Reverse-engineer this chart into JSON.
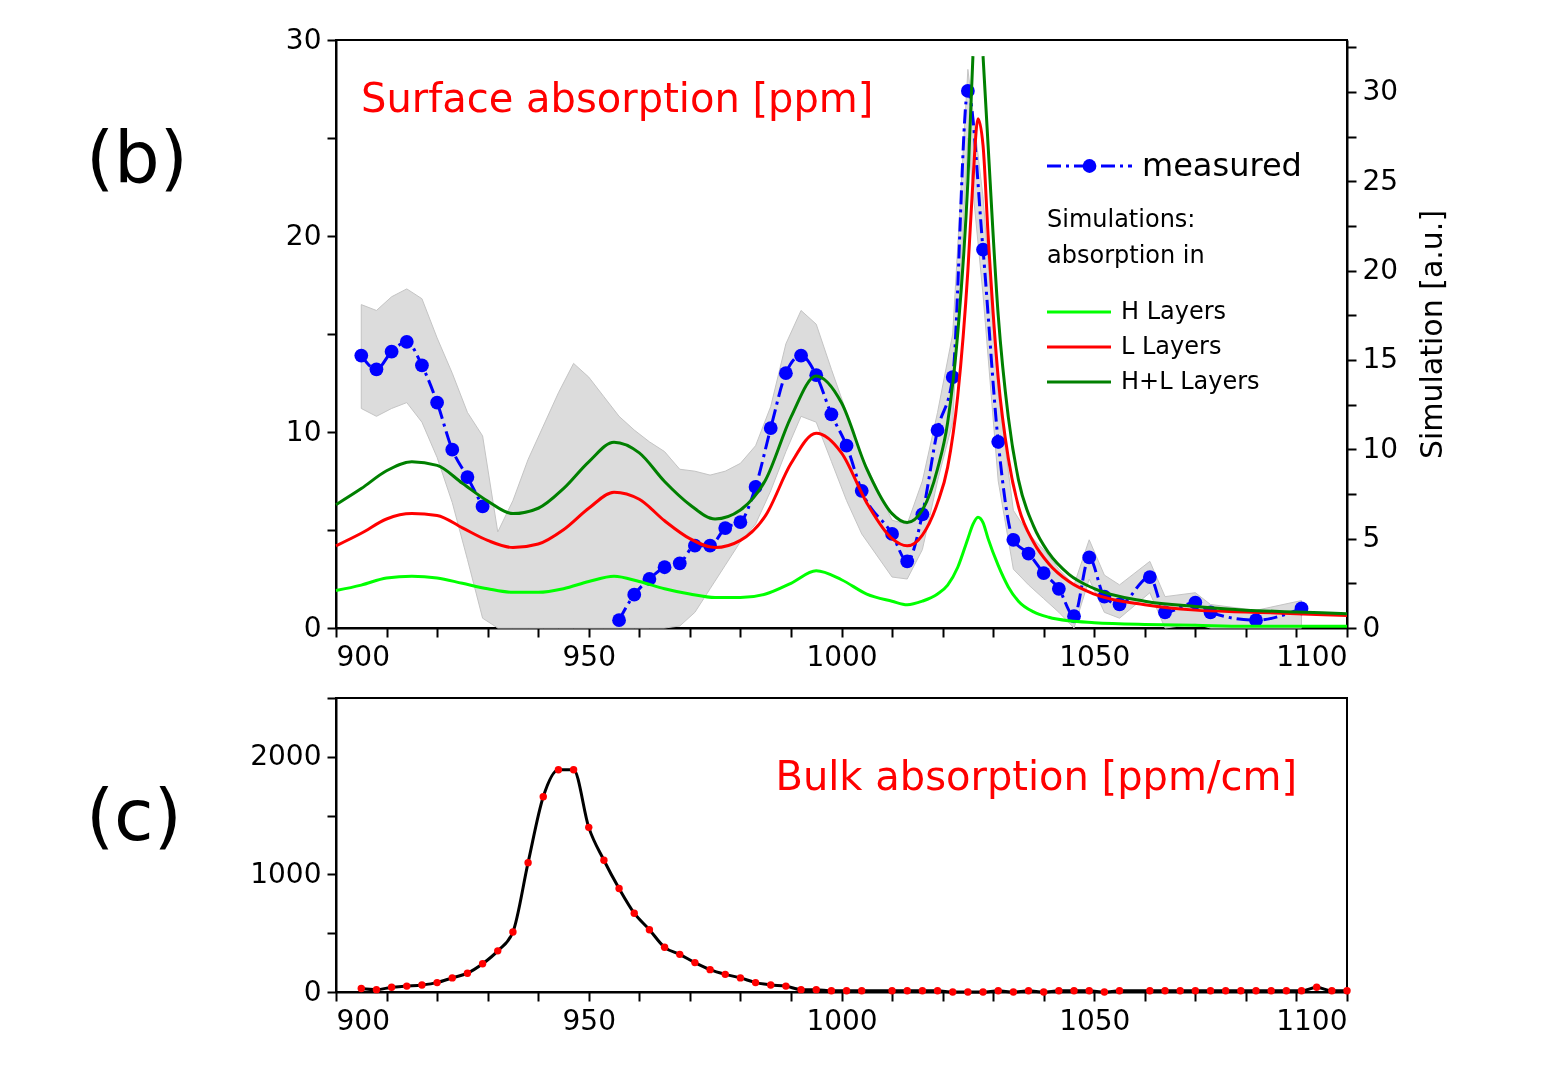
{
  "chart_data": [
    {
      "type": "line",
      "title": "Surface absorption [ppm]",
      "y2label": "Simulation [a.u.]",
      "annotations": [
        "(b)"
      ],
      "legend": "top right",
      "legend_title": "Simulations: absorption in",
      "grid": false,
      "xlim": [
        900,
        1100
      ],
      "xticks": [
        900,
        {
          "value": 910,
          "label": null
        },
        {
          "value": 920,
          "label": null
        },
        {
          "value": 930,
          "label": null
        },
        {
          "value": 940,
          "label": null
        },
        950,
        {
          "value": 960,
          "label": null
        },
        {
          "value": 970,
          "label": null
        },
        {
          "value": 980,
          "label": null
        },
        {
          "value": 990,
          "label": null
        },
        1000,
        {
          "value": 1010,
          "label": null
        },
        {
          "value": 1020,
          "label": null
        },
        {
          "value": 1030,
          "label": null
        },
        {
          "value": 1040,
          "label": null
        },
        1050,
        {
          "value": 1060,
          "label": null
        },
        {
          "value": 1070,
          "label": null
        },
        {
          "value": 1080,
          "label": null
        },
        {
          "value": 1090,
          "label": null
        },
        1100
      ],
      "ylim": [
        0,
        30
      ],
      "yticks": [
        0,
        {
          "value": 5,
          "label": null
        },
        10,
        {
          "value": 15,
          "label": null
        },
        20,
        {
          "value": 25,
          "label": null
        },
        30
      ],
      "y2lim": [
        0,
        32.9
      ],
      "y2ticks": [
        0,
        {
          "value": 2.5,
          "label": null
        },
        5,
        {
          "value": 7.5,
          "label": null
        },
        10,
        {
          "value": 12.5,
          "label": null
        },
        15,
        {
          "value": 17.5,
          "label": null
        },
        20,
        {
          "value": 22.5,
          "label": null
        },
        25,
        {
          "value": 27.5,
          "label": null
        },
        30,
        {
          "value": 32.5,
          "label": null
        }
      ],
      "series": [
        {
          "name": "measured",
          "color": "#0000ff",
          "marker": "circle",
          "line_style": "dashed",
          "axis": "y",
          "x": [
            905,
            908,
            911,
            914,
            917,
            920,
            923,
            926,
            929,
            932,
            935,
            938,
            941,
            944,
            947,
            950,
            953,
            956,
            959,
            962,
            965,
            968,
            971,
            974,
            977,
            980,
            983,
            986,
            989,
            992,
            995,
            998,
            1001,
            1004,
            1010,
            1013,
            1016,
            1019,
            1022,
            1025,
            1028,
            1031,
            1034,
            1037,
            1040,
            1043,
            1046,
            1049,
            1052,
            1055,
            1061,
            1064,
            1070,
            1073,
            1082,
            1091
          ],
          "values": [
            13.9,
            13.2,
            14.1,
            14.6,
            13.4,
            11.5,
            9.1,
            7.7,
            6.2,
            null,
            null,
            null,
            null,
            null,
            null,
            null,
            null,
            0.4,
            1.7,
            2.5,
            3.1,
            3.3,
            4.2,
            4.2,
            5.1,
            5.4,
            7.2,
            10.2,
            13.0,
            13.9,
            12.9,
            10.9,
            9.3,
            7.0,
            4.8,
            3.4,
            5.8,
            10.1,
            12.8,
            27.4,
            19.3,
            9.5,
            4.5,
            3.8,
            2.8,
            2.0,
            0.6,
            3.6,
            1.6,
            1.2,
            2.6,
            0.8,
            1.3,
            0.8,
            0.4,
            1.0
          ],
          "lower": [
            11.2,
            10.8,
            11.2,
            11.5,
            10.5,
            8.7,
            6.4,
            3.5,
            0.5,
            0,
            0,
            0,
            0,
            0,
            0,
            0,
            0,
            0,
            0,
            0,
            0,
            0.1,
            0.8,
            2.0,
            3.2,
            4.4,
            5.3,
            7.0,
            9.0,
            10.8,
            10.5,
            8.5,
            6.5,
            4.8,
            2.6,
            2.5,
            4.0,
            7.5,
            10.5,
            25,
            17,
            7.5,
            3.0,
            2.2,
            1.5,
            0.8,
            0,
            2.5,
            0.8,
            0.5,
            1.8,
            0,
            0.2,
            0,
            0,
            0
          ],
          "upper": [
            16.5,
            16.2,
            16.9,
            17.3,
            16.8,
            14.8,
            13.0,
            11.0,
            9.8,
            4.9,
            6.5,
            8.6,
            10.3,
            12.0,
            13.5,
            12.8,
            11.8,
            10.8,
            10.1,
            9.5,
            9.0,
            8.1,
            8.0,
            7.8,
            8.0,
            8.4,
            9.3,
            11.3,
            14.5,
            16.2,
            15.5,
            13.2,
            11.0,
            8.8,
            5.5,
            5.3,
            7.5,
            11.0,
            15.0,
            28.5,
            22,
            12,
            6,
            4.8,
            4.0,
            3.0,
            2.2,
            4.5,
            2.7,
            2.2,
            3.4,
            1.6,
            1.8,
            1.2,
            0.9,
            1.4
          ]
        },
        {
          "name": "H Layers",
          "color": "#00ff00",
          "axis": "y2",
          "x": [
            900,
            905,
            910,
            915,
            920,
            925,
            930,
            935,
            940,
            945,
            950,
            955,
            960,
            965,
            970,
            975,
            980,
            985,
            990,
            995,
            1000,
            1005,
            1010,
            1013,
            1016,
            1019,
            1021,
            1023,
            1025,
            1026,
            1027,
            1028,
            1029,
            1031,
            1033,
            1035,
            1038,
            1041,
            1045,
            1050,
            1060,
            1070,
            1080,
            1090,
            1100
          ],
          "values": [
            2.1,
            2.4,
            2.8,
            2.9,
            2.8,
            2.5,
            2.2,
            2.0,
            2.0,
            2.2,
            2.6,
            2.9,
            2.6,
            2.2,
            1.9,
            1.7,
            1.7,
            1.9,
            2.5,
            3.2,
            2.7,
            1.9,
            1.5,
            1.3,
            1.5,
            1.9,
            2.4,
            3.4,
            5.0,
            5.8,
            6.2,
            5.9,
            5.0,
            3.5,
            2.3,
            1.5,
            0.9,
            0.6,
            0.4,
            0.3,
            0.2,
            0.15,
            0.1,
            0.1,
            0.1
          ]
        },
        {
          "name": "L Layers",
          "color": "#ff0000",
          "axis": "y2",
          "x": [
            900,
            905,
            910,
            915,
            920,
            925,
            930,
            935,
            940,
            945,
            950,
            955,
            960,
            965,
            970,
            975,
            980,
            985,
            990,
            995,
            1000,
            1005,
            1010,
            1013,
            1016,
            1019,
            1021,
            1023,
            1025,
            1026,
            1027,
            1028,
            1029,
            1031,
            1033,
            1035,
            1038,
            1041,
            1045,
            1050,
            1060,
            1070,
            1080,
            1090,
            1100
          ],
          "values": [
            4.6,
            5.3,
            6.1,
            6.4,
            6.3,
            5.6,
            4.9,
            4.5,
            4.7,
            5.5,
            6.7,
            7.6,
            7.2,
            6.0,
            5.0,
            4.5,
            4.9,
            6.3,
            9.2,
            10.9,
            9.8,
            7.0,
            5.0,
            4.6,
            5.2,
            7.0,
            9.0,
            13,
            20,
            25,
            28.5,
            27,
            22,
            14,
            9.5,
            6.8,
            4.8,
            3.6,
            2.6,
            1.9,
            1.3,
            1.0,
            0.9,
            0.8,
            0.7
          ]
        },
        {
          "name": "H+L Layers",
          "color": "#008000",
          "axis": "y2",
          "x": [
            900,
            905,
            910,
            915,
            920,
            925,
            930,
            935,
            940,
            945,
            950,
            955,
            960,
            965,
            970,
            975,
            980,
            985,
            990,
            995,
            1000,
            1005,
            1010,
            1013,
            1016,
            1019,
            1021,
            1023,
            1025,
            1026,
            1027,
            1028,
            1029,
            1031,
            1033,
            1035,
            1038,
            1041,
            1045,
            1050,
            1060,
            1070,
            1080,
            1090,
            1100
          ],
          "values": [
            6.9,
            7.8,
            8.8,
            9.3,
            9.1,
            8.1,
            7.1,
            6.4,
            6.7,
            7.8,
            9.3,
            10.4,
            9.8,
            8.2,
            6.9,
            6.1,
            6.6,
            8.3,
            11.8,
            14.1,
            12.6,
            8.9,
            6.4,
            5.9,
            6.6,
            8.9,
            11.5,
            16.5,
            25,
            32,
            null,
            32,
            27,
            17.5,
            11.8,
            8.3,
            5.7,
            4.2,
            3.0,
            2.2,
            1.5,
            1.2,
            1.0,
            0.9,
            0.8
          ]
        }
      ]
    },
    {
      "type": "line",
      "title": "Bulk absorption [ppm/cm]",
      "annotations": [
        "(c)"
      ],
      "grid": false,
      "xlim": [
        900,
        1100
      ],
      "xticks": [
        900,
        {
          "value": 910,
          "label": null
        },
        {
          "value": 920,
          "label": null
        },
        {
          "value": 930,
          "label": null
        },
        {
          "value": 940,
          "label": null
        },
        950,
        {
          "value": 960,
          "label": null
        },
        {
          "value": 970,
          "label": null
        },
        {
          "value": 980,
          "label": null
        },
        {
          "value": 990,
          "label": null
        },
        1000,
        {
          "value": 1010,
          "label": null
        },
        {
          "value": 1020,
          "label": null
        },
        {
          "value": 1030,
          "label": null
        },
        {
          "value": 1040,
          "label": null
        },
        1050,
        {
          "value": 1060,
          "label": null
        },
        {
          "value": 1070,
          "label": null
        },
        {
          "value": 1080,
          "label": null
        },
        {
          "value": 1090,
          "label": null
        },
        1100
      ],
      "ylim": [
        0,
        2500
      ],
      "yticks": [
        0,
        {
          "value": 500,
          "label": null
        },
        1000,
        {
          "value": 1500,
          "label": null
        },
        2000,
        {
          "value": 2500,
          "label": null
        }
      ],
      "series": [
        {
          "type": "line",
          "color": "#000000",
          "x": [
            905,
            908,
            911,
            914,
            917,
            920,
            923,
            926,
            929,
            932,
            935,
            938,
            941,
            944,
            947,
            950,
            953,
            956,
            959,
            962,
            965,
            968,
            971,
            974,
            977,
            980,
            983,
            986,
            989,
            992,
            995,
            998,
            1001,
            1004,
            1010,
            1013,
            1016,
            1019,
            1022,
            1025,
            1028,
            1031,
            1034,
            1037,
            1040,
            1043,
            1046,
            1049,
            1052,
            1055,
            1061,
            1064,
            1067,
            1070,
            1073,
            1076,
            1079,
            1082,
            1085,
            1088,
            1091,
            1094,
            1097,
            1100
          ],
          "values": [
            30,
            20,
            40,
            50,
            60,
            80,
            120,
            160,
            240,
            350,
            510,
            1100,
            1660,
            1890,
            1890,
            1400,
            1120,
            880,
            670,
            530,
            380,
            320,
            250,
            190,
            150,
            120,
            80,
            60,
            50,
            20,
            20,
            10,
            10,
            10,
            10,
            10,
            10,
            10,
            0,
            0,
            0,
            10,
            0,
            10,
            0,
            10,
            10,
            10,
            0,
            10,
            10,
            10,
            10,
            10,
            10,
            10,
            10,
            10,
            10,
            10,
            10,
            40,
            10,
            10
          ]
        },
        {
          "type": "scatter",
          "color": "#ff0000",
          "marker": "circle",
          "x": [
            905,
            908,
            911,
            914,
            917,
            920,
            923,
            926,
            929,
            932,
            935,
            938,
            941,
            944,
            947,
            950,
            953,
            956,
            959,
            962,
            965,
            968,
            971,
            974,
            977,
            980,
            983,
            986,
            989,
            992,
            995,
            998,
            1001,
            1004,
            1010,
            1013,
            1016,
            1019,
            1022,
            1025,
            1028,
            1031,
            1034,
            1037,
            1040,
            1043,
            1046,
            1049,
            1052,
            1055,
            1061,
            1064,
            1067,
            1070,
            1073,
            1076,
            1079,
            1082,
            1085,
            1088,
            1091,
            1094,
            1097,
            1100
          ],
          "values": [
            30,
            20,
            40,
            50,
            60,
            80,
            120,
            160,
            240,
            350,
            510,
            1100,
            1660,
            1890,
            1890,
            1400,
            1120,
            880,
            670,
            530,
            380,
            320,
            250,
            190,
            150,
            120,
            80,
            60,
            50,
            20,
            20,
            10,
            10,
            10,
            10,
            10,
            10,
            10,
            0,
            0,
            0,
            10,
            0,
            10,
            0,
            10,
            10,
            10,
            0,
            10,
            10,
            10,
            10,
            10,
            10,
            10,
            10,
            10,
            10,
            10,
            10,
            40,
            10,
            10
          ]
        }
      ]
    }
  ]
}
